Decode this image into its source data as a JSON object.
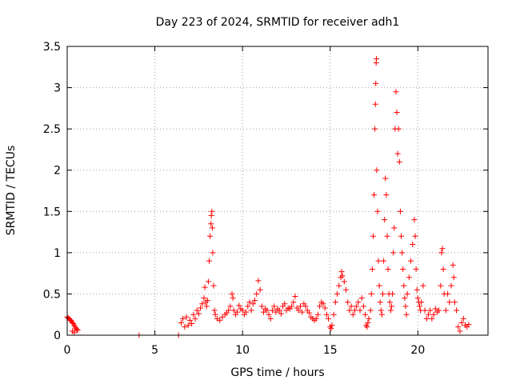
{
  "chart_data": {
    "type": "scatter",
    "title": "Day 223 of 2024, SRMTID for receiver adh1",
    "xlabel": "GPS time / hours",
    "ylabel": "SRMTID / TECUs",
    "xlim": [
      0,
      24
    ],
    "ylim": [
      0,
      3.5
    ],
    "xticks": [
      0,
      5,
      10,
      15,
      20
    ],
    "xtick_labels": [
      "0",
      "5",
      "10",
      "15",
      "20"
    ],
    "yticks": [
      0,
      0.5,
      1,
      1.5,
      2,
      2.5,
      3,
      3.5
    ],
    "ytick_labels": [
      "0",
      "0.5",
      "1",
      "1.5",
      "2",
      "2.5",
      "3",
      "3.5"
    ],
    "grid": true,
    "marker": "+",
    "color": "#ff0000",
    "series": [
      {
        "name": "adh1",
        "points": [
          [
            0.0,
            0.22
          ],
          [
            0.05,
            0.21
          ],
          [
            0.1,
            0.2
          ],
          [
            0.15,
            0.19
          ],
          [
            0.2,
            0.18
          ],
          [
            0.25,
            0.17
          ],
          [
            0.3,
            0.15
          ],
          [
            0.35,
            0.14
          ],
          [
            0.4,
            0.12
          ],
          [
            0.45,
            0.1
          ],
          [
            0.5,
            0.08
          ],
          [
            0.55,
            0.07
          ],
          [
            0.6,
            0.06
          ],
          [
            0.3,
            0.05
          ],
          [
            0.4,
            0.03
          ],
          [
            4.1,
            0.0
          ],
          [
            6.35,
            0.0
          ],
          [
            6.5,
            0.15
          ],
          [
            6.6,
            0.2
          ],
          [
            6.7,
            0.1
          ],
          [
            6.8,
            0.22
          ],
          [
            6.9,
            0.12
          ],
          [
            7.0,
            0.18
          ],
          [
            7.1,
            0.14
          ],
          [
            7.2,
            0.25
          ],
          [
            7.3,
            0.2
          ],
          [
            7.4,
            0.3
          ],
          [
            7.5,
            0.26
          ],
          [
            7.6,
            0.33
          ],
          [
            7.7,
            0.38
          ],
          [
            7.8,
            0.45
          ],
          [
            7.85,
            0.58
          ],
          [
            7.9,
            0.4
          ],
          [
            7.95,
            0.35
          ],
          [
            8.0,
            0.42
          ],
          [
            8.05,
            0.65
          ],
          [
            8.1,
            0.9
          ],
          [
            8.15,
            1.2
          ],
          [
            8.2,
            1.35
          ],
          [
            8.22,
            1.45
          ],
          [
            8.25,
            1.5
          ],
          [
            8.28,
            1.3
          ],
          [
            8.3,
            1.0
          ],
          [
            8.35,
            0.6
          ],
          [
            8.4,
            0.3
          ],
          [
            8.45,
            0.25
          ],
          [
            8.55,
            0.2
          ],
          [
            8.7,
            0.18
          ],
          [
            8.85,
            0.22
          ],
          [
            9.0,
            0.25
          ],
          [
            9.1,
            0.27
          ],
          [
            9.2,
            0.3
          ],
          [
            9.3,
            0.35
          ],
          [
            9.4,
            0.5
          ],
          [
            9.45,
            0.45
          ],
          [
            9.5,
            0.3
          ],
          [
            9.6,
            0.25
          ],
          [
            9.7,
            0.28
          ],
          [
            9.8,
            0.36
          ],
          [
            9.9,
            0.32
          ],
          [
            10.0,
            0.3
          ],
          [
            10.1,
            0.25
          ],
          [
            10.2,
            0.28
          ],
          [
            10.3,
            0.35
          ],
          [
            10.4,
            0.4
          ],
          [
            10.5,
            0.3
          ],
          [
            10.6,
            0.38
          ],
          [
            10.7,
            0.42
          ],
          [
            10.8,
            0.5
          ],
          [
            10.9,
            0.66
          ],
          [
            11.0,
            0.55
          ],
          [
            11.1,
            0.35
          ],
          [
            11.2,
            0.28
          ],
          [
            11.3,
            0.32
          ],
          [
            11.4,
            0.3
          ],
          [
            11.5,
            0.25
          ],
          [
            11.6,
            0.2
          ],
          [
            11.7,
            0.3
          ],
          [
            11.8,
            0.35
          ],
          [
            11.9,
            0.28
          ],
          [
            12.0,
            0.32
          ],
          [
            12.1,
            0.3
          ],
          [
            12.2,
            0.26
          ],
          [
            12.3,
            0.35
          ],
          [
            12.4,
            0.38
          ],
          [
            12.5,
            0.3
          ],
          [
            12.6,
            0.33
          ],
          [
            12.7,
            0.32
          ],
          [
            12.8,
            0.35
          ],
          [
            12.9,
            0.4
          ],
          [
            13.0,
            0.47
          ],
          [
            13.1,
            0.33
          ],
          [
            13.2,
            0.3
          ],
          [
            13.3,
            0.35
          ],
          [
            13.4,
            0.28
          ],
          [
            13.5,
            0.38
          ],
          [
            13.6,
            0.35
          ],
          [
            13.7,
            0.3
          ],
          [
            13.8,
            0.27
          ],
          [
            13.9,
            0.22
          ],
          [
            14.0,
            0.2
          ],
          [
            14.1,
            0.18
          ],
          [
            14.2,
            0.2
          ],
          [
            14.3,
            0.25
          ],
          [
            14.4,
            0.35
          ],
          [
            14.5,
            0.4
          ],
          [
            14.6,
            0.38
          ],
          [
            14.7,
            0.33
          ],
          [
            14.8,
            0.25
          ],
          [
            14.9,
            0.2
          ],
          [
            15.0,
            0.1
          ],
          [
            15.05,
            0.08
          ],
          [
            15.1,
            0.12
          ],
          [
            15.2,
            0.25
          ],
          [
            15.3,
            0.4
          ],
          [
            15.4,
            0.5
          ],
          [
            15.5,
            0.6
          ],
          [
            15.6,
            0.7
          ],
          [
            15.65,
            0.77
          ],
          [
            15.7,
            0.72
          ],
          [
            15.8,
            0.65
          ],
          [
            15.9,
            0.55
          ],
          [
            16.0,
            0.4
          ],
          [
            16.1,
            0.3
          ],
          [
            16.2,
            0.35
          ],
          [
            16.3,
            0.25
          ],
          [
            16.4,
            0.3
          ],
          [
            16.5,
            0.35
          ],
          [
            16.6,
            0.4
          ],
          [
            16.7,
            0.3
          ],
          [
            16.8,
            0.45
          ],
          [
            16.9,
            0.35
          ],
          [
            17.0,
            0.25
          ],
          [
            17.05,
            0.12
          ],
          [
            17.1,
            0.1
          ],
          [
            17.15,
            0.15
          ],
          [
            17.2,
            0.2
          ],
          [
            17.3,
            0.3
          ],
          [
            17.35,
            0.5
          ],
          [
            17.4,
            0.8
          ],
          [
            17.45,
            1.2
          ],
          [
            17.5,
            1.7
          ],
          [
            17.55,
            2.5
          ],
          [
            17.58,
            2.8
          ],
          [
            17.6,
            3.05
          ],
          [
            17.62,
            3.3
          ],
          [
            17.64,
            3.35
          ],
          [
            17.65,
            2.0
          ],
          [
            17.7,
            1.5
          ],
          [
            17.75,
            0.9
          ],
          [
            17.8,
            0.6
          ],
          [
            17.85,
            0.4
          ],
          [
            17.9,
            0.3
          ],
          [
            17.95,
            0.25
          ],
          [
            18.0,
            0.5
          ],
          [
            18.05,
            0.9
          ],
          [
            18.1,
            1.4
          ],
          [
            18.15,
            1.9
          ],
          [
            18.2,
            1.7
          ],
          [
            18.25,
            1.2
          ],
          [
            18.3,
            0.8
          ],
          [
            18.35,
            0.5
          ],
          [
            18.4,
            0.4
          ],
          [
            18.45,
            0.3
          ],
          [
            18.5,
            0.35
          ],
          [
            18.55,
            0.5
          ],
          [
            18.6,
            1.0
          ],
          [
            18.65,
            1.3
          ],
          [
            18.7,
            2.5
          ],
          [
            18.75,
            2.95
          ],
          [
            18.8,
            2.7
          ],
          [
            18.85,
            2.2
          ],
          [
            18.9,
            2.5
          ],
          [
            18.95,
            2.1
          ],
          [
            19.0,
            1.5
          ],
          [
            19.05,
            1.2
          ],
          [
            19.1,
            1.0
          ],
          [
            19.15,
            0.8
          ],
          [
            19.2,
            0.6
          ],
          [
            19.25,
            0.45
          ],
          [
            19.3,
            0.35
          ],
          [
            19.35,
            0.25
          ],
          [
            19.4,
            0.5
          ],
          [
            19.5,
            0.7
          ],
          [
            19.6,
            0.9
          ],
          [
            19.7,
            1.1
          ],
          [
            19.8,
            1.4
          ],
          [
            19.85,
            1.2
          ],
          [
            19.9,
            0.8
          ],
          [
            19.95,
            0.55
          ],
          [
            20.0,
            0.45
          ],
          [
            20.05,
            0.4
          ],
          [
            20.1,
            0.35
          ],
          [
            20.15,
            0.3
          ],
          [
            20.2,
            0.4
          ],
          [
            20.3,
            0.6
          ],
          [
            20.4,
            0.3
          ],
          [
            20.5,
            0.2
          ],
          [
            20.6,
            0.25
          ],
          [
            20.7,
            0.3
          ],
          [
            20.8,
            0.2
          ],
          [
            20.9,
            0.25
          ],
          [
            21.0,
            0.32
          ],
          [
            21.1,
            0.28
          ],
          [
            21.2,
            0.3
          ],
          [
            21.3,
            0.6
          ],
          [
            21.35,
            1.0
          ],
          [
            21.4,
            1.05
          ],
          [
            21.45,
            0.8
          ],
          [
            21.5,
            0.5
          ],
          [
            21.6,
            0.3
          ],
          [
            21.7,
            0.5
          ],
          [
            21.8,
            0.4
          ],
          [
            21.9,
            0.6
          ],
          [
            22.0,
            0.85
          ],
          [
            22.05,
            0.7
          ],
          [
            22.1,
            0.4
          ],
          [
            22.2,
            0.3
          ],
          [
            22.3,
            0.1
          ],
          [
            22.4,
            0.05
          ],
          [
            22.5,
            0.15
          ],
          [
            22.6,
            0.2
          ],
          [
            22.7,
            0.12
          ],
          [
            22.8,
            0.1
          ],
          [
            22.9,
            0.13
          ]
        ]
      }
    ]
  }
}
